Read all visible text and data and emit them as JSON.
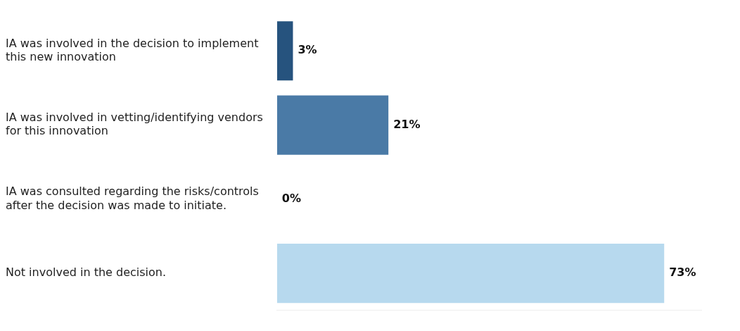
{
  "chart_data": {
    "type": "bar",
    "orientation": "horizontal",
    "categories": [
      "IA was involved in the decision to implement this new innovation",
      "IA was involved in vetting/identifying vendors for this innovation",
      "IA was consulted regarding the risks/controls after the decision was made to initiate.",
      "Not involved in the decision."
    ],
    "values": [
      3,
      21,
      0,
      73
    ],
    "colors": [
      "#26537e",
      "#4a7aa6",
      "#8fb8d8",
      "#b7d9ee"
    ],
    "value_labels": [
      "3%",
      "21%",
      "0%",
      "73%"
    ],
    "grid": false,
    "legend": false
  }
}
